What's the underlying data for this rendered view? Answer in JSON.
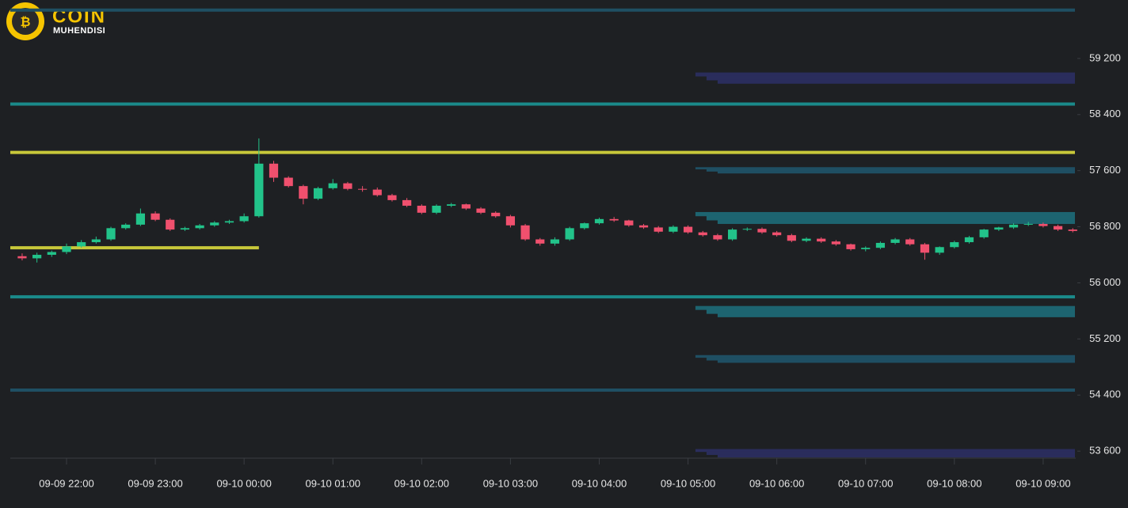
{
  "logo": {
    "title": "COIN",
    "subtitle": "MUHENDISI"
  },
  "chart_data": {
    "type": "candlestick",
    "x": [
      "09-09 21:30",
      "09-09 21:40",
      "09-09 21:50",
      "09-09 22:00",
      "09-09 22:10",
      "09-09 22:20",
      "09-09 22:30",
      "09-09 22:40",
      "09-09 22:50",
      "09-09 23:00",
      "09-09 23:10",
      "09-09 23:20",
      "09-09 23:30",
      "09-09 23:40",
      "09-09 23:50",
      "09-10 00:00",
      "09-10 00:10",
      "09-10 00:20",
      "09-10 00:30",
      "09-10 00:40",
      "09-10 00:50",
      "09-10 01:00",
      "09-10 01:10",
      "09-10 01:20",
      "09-10 01:30",
      "09-10 01:40",
      "09-10 01:50",
      "09-10 02:00",
      "09-10 02:10",
      "09-10 02:20",
      "09-10 02:30",
      "09-10 02:40",
      "09-10 02:50",
      "09-10 03:00",
      "09-10 03:10",
      "09-10 03:20",
      "09-10 03:30",
      "09-10 03:40",
      "09-10 03:50",
      "09-10 04:00",
      "09-10 04:10",
      "09-10 04:20",
      "09-10 04:30",
      "09-10 04:40",
      "09-10 04:50",
      "09-10 05:00",
      "09-10 05:10",
      "09-10 05:20",
      "09-10 05:30",
      "09-10 05:40",
      "09-10 05:50",
      "09-10 06:00",
      "09-10 06:10",
      "09-10 06:20",
      "09-10 06:30",
      "09-10 06:40",
      "09-10 06:50",
      "09-10 07:00",
      "09-10 07:10",
      "09-10 07:20",
      "09-10 07:30",
      "09-10 07:40",
      "09-10 07:50",
      "09-10 08:00",
      "09-10 08:10",
      "09-10 08:20",
      "09-10 08:30",
      "09-10 08:40",
      "09-10 08:50",
      "09-10 09:00",
      "09-10 09:10",
      "09-10 09:20"
    ],
    "open": [
      56380,
      56350,
      56400,
      56440,
      56520,
      56580,
      56620,
      56780,
      56830,
      56990,
      56900,
      56760,
      56780,
      56820,
      56860,
      56880,
      56950,
      57700,
      57500,
      57380,
      57200,
      57350,
      57420,
      57340,
      57330,
      57250,
      57180,
      57100,
      57000,
      57100,
      57120,
      57060,
      57000,
      56950,
      56820,
      56620,
      56560,
      56620,
      56780,
      56850,
      56910,
      56890,
      56820,
      56790,
      56730,
      56800,
      56720,
      56680,
      56620,
      56760,
      56770,
      56720,
      56680,
      56600,
      56630,
      56590,
      56550,
      56480,
      56500,
      56570,
      56620,
      56550,
      56430,
      56510,
      56580,
      56650,
      56760,
      56790,
      56830,
      56840,
      56810,
      56760
    ],
    "high": [
      56420,
      56430,
      56460,
      56560,
      56610,
      56660,
      56800,
      56850,
      57060,
      57020,
      56920,
      56800,
      56840,
      56880,
      56900,
      56990,
      58060,
      57740,
      57520,
      57400,
      57370,
      57480,
      57440,
      57380,
      57360,
      57270,
      57210,
      57120,
      57120,
      57140,
      57130,
      57080,
      57020,
      56970,
      56840,
      56640,
      56650,
      56800,
      56860,
      56930,
      56940,
      56900,
      56840,
      56810,
      56820,
      56820,
      56740,
      56700,
      56780,
      56790,
      56790,
      56740,
      56700,
      56650,
      56650,
      56610,
      56560,
      56520,
      56590,
      56640,
      56640,
      56570,
      56520,
      56600,
      56670,
      56770,
      56800,
      56850,
      56870,
      56860,
      56830,
      56780
    ],
    "low": [
      56320,
      56290,
      56370,
      56410,
      56500,
      56560,
      56600,
      56760,
      56810,
      56880,
      56740,
      56740,
      56760,
      56800,
      56840,
      56860,
      56930,
      57440,
      57360,
      57120,
      57180,
      57330,
      57320,
      57300,
      57230,
      57160,
      57080,
      56980,
      56980,
      57080,
      57040,
      56980,
      56930,
      56790,
      56600,
      56530,
      56530,
      56600,
      56760,
      56830,
      56870,
      56800,
      56770,
      56710,
      56710,
      56700,
      56660,
      56600,
      56600,
      56740,
      56700,
      56660,
      56580,
      56580,
      56570,
      56530,
      56460,
      56450,
      56480,
      56550,
      56530,
      56330,
      56400,
      56490,
      56560,
      56630,
      56740,
      56770,
      56810,
      56790,
      56740,
      56720
    ],
    "close": [
      56350,
      56400,
      56440,
      56520,
      56580,
      56620,
      56780,
      56830,
      56990,
      56900,
      56760,
      56780,
      56820,
      56860,
      56880,
      56950,
      57700,
      57500,
      57380,
      57200,
      57350,
      57420,
      57340,
      57330,
      57250,
      57180,
      57100,
      57000,
      57100,
      57120,
      57060,
      57000,
      56950,
      56820,
      56620,
      56560,
      56620,
      56780,
      56850,
      56910,
      56890,
      56820,
      56790,
      56730,
      56800,
      56720,
      56680,
      56620,
      56760,
      56770,
      56720,
      56680,
      56600,
      56630,
      56590,
      56550,
      56480,
      56500,
      56570,
      56620,
      56550,
      56430,
      56510,
      56580,
      56650,
      56760,
      56790,
      56830,
      56840,
      56810,
      56760,
      56740
    ],
    "up_color": "#22c38a",
    "down_color": "#f0506e",
    "levels": [
      {
        "value": 59890,
        "color": "#1f4f63"
      },
      {
        "value": 58550,
        "color": "#1a8a8a"
      },
      {
        "value": 57860,
        "color": "#c8c83a"
      },
      {
        "value": 56500,
        "color": "#c8c83a",
        "to": "09-10 00:10"
      },
      {
        "value": 55800,
        "color": "#1a8a8a"
      },
      {
        "value": 54470,
        "color": "#1f4f63"
      }
    ],
    "zones": [
      {
        "low": 58840,
        "high": 59000,
        "from": "09-10 05:05",
        "color": "#2a2d5c"
      },
      {
        "low": 57560,
        "high": 57650,
        "from": "09-10 05:05",
        "color": "#1f4f63"
      },
      {
        "low": 56840,
        "high": 57010,
        "from": "09-10 05:05",
        "color": "#1d6470"
      },
      {
        "low": 55510,
        "high": 55670,
        "from": "09-10 05:05",
        "color": "#1d6470"
      },
      {
        "low": 54860,
        "high": 54970,
        "from": "09-10 05:05",
        "color": "#1f4f63"
      },
      {
        "low": 53510,
        "high": 53630,
        "from": "09-10 05:05",
        "color": "#2a2d5c"
      }
    ],
    "xlim": [
      "09-09 21:22",
      "09-10 09:22"
    ],
    "xticks": [
      "09-09 22:00",
      "09-09 23:00",
      "09-10 00:00",
      "09-10 01:00",
      "09-10 02:00",
      "09-10 03:00",
      "09-10 04:00",
      "09-10 05:00",
      "09-10 06:00",
      "09-10 07:00",
      "09-10 08:00",
      "09-10 09:00"
    ],
    "ylim": [
      53500,
      60000
    ],
    "yticks": [
      {
        "value": 53600,
        "label": "53 600"
      },
      {
        "value": 54400,
        "label": "54 400"
      },
      {
        "value": 55200,
        "label": "55 200"
      },
      {
        "value": 56000,
        "label": "56 000"
      },
      {
        "value": 56800,
        "label": "56 800"
      },
      {
        "value": 57600,
        "label": "57 600"
      },
      {
        "value": 58400,
        "label": "58 400"
      },
      {
        "value": 59200,
        "label": "59 200"
      }
    ]
  }
}
